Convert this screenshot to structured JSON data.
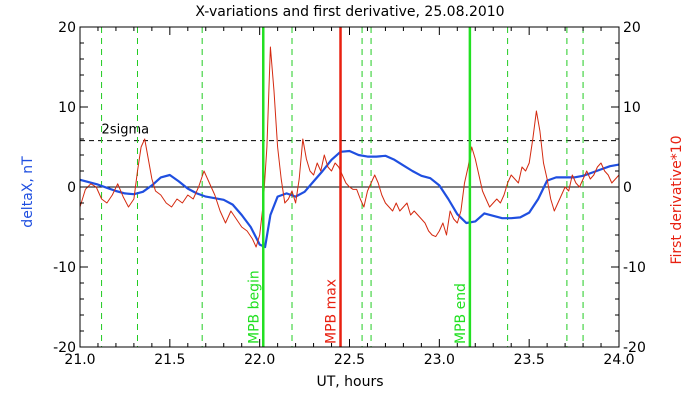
{
  "chart_data": {
    "type": "line",
    "title": "X-variations and first derivative, 25.08.2010",
    "xlabel": "UT, hours",
    "ylabel_left": "deltaX, nT",
    "ylabel_right": "First derivative*10",
    "xlim": [
      21.0,
      24.0
    ],
    "ylim_left": [
      -20,
      20
    ],
    "ylim_right": [
      -20,
      20
    ],
    "x_ticks": [
      "21.0",
      "21.5",
      "22.0",
      "22.5",
      "23.0",
      "23.5",
      "24.0"
    ],
    "y_ticks_left": [
      "-20",
      "-10",
      "0",
      "10",
      "20"
    ],
    "y_ticks_right": [
      "-20",
      "-10",
      "0",
      "10",
      "20"
    ],
    "colors": {
      "deltaX": "#1f4fe0",
      "derivative": "#d42a10",
      "mpb_lines": "#22e022",
      "mpb_max_line": "#e82010",
      "dashed_green": "#22cc22",
      "right_axis_label": "#e82010",
      "left_axis_label": "#1f4fe0"
    },
    "sigma": {
      "label": "2sigma",
      "value": 5.8
    },
    "dashed_green_x": [
      21.12,
      21.32,
      21.68,
      22.18,
      22.57,
      22.62,
      23.38,
      23.71,
      23.8
    ],
    "markers": [
      {
        "label": "MPB begin",
        "x": 22.02,
        "color": "#22e022"
      },
      {
        "label": "MPB max",
        "x": 22.45,
        "color": "#e82010"
      },
      {
        "label": "MPB end",
        "x": 23.17,
        "color": "#22e022"
      }
    ],
    "series": [
      {
        "name": "deltaX",
        "axis": "left",
        "color": "#1f4fe0",
        "points": [
          [
            21.0,
            0.9
          ],
          [
            21.05,
            0.6
          ],
          [
            21.1,
            0.3
          ],
          [
            21.15,
            -0.1
          ],
          [
            21.2,
            -0.5
          ],
          [
            21.25,
            -0.8
          ],
          [
            21.3,
            -0.9
          ],
          [
            21.35,
            -0.6
          ],
          [
            21.4,
            0.2
          ],
          [
            21.45,
            1.2
          ],
          [
            21.5,
            1.5
          ],
          [
            21.55,
            0.7
          ],
          [
            21.6,
            -0.2
          ],
          [
            21.65,
            -0.8
          ],
          [
            21.7,
            -1.2
          ],
          [
            21.75,
            -1.4
          ],
          [
            21.8,
            -1.6
          ],
          [
            21.85,
            -2.2
          ],
          [
            21.9,
            -3.5
          ],
          [
            21.95,
            -5.0
          ],
          [
            22.0,
            -7.2
          ],
          [
            22.03,
            -7.5
          ],
          [
            22.06,
            -3.5
          ],
          [
            22.1,
            -1.2
          ],
          [
            22.15,
            -0.8
          ],
          [
            22.2,
            -1.2
          ],
          [
            22.25,
            -0.6
          ],
          [
            22.3,
            0.7
          ],
          [
            22.35,
            2.0
          ],
          [
            22.4,
            3.4
          ],
          [
            22.45,
            4.4
          ],
          [
            22.5,
            4.5
          ],
          [
            22.55,
            4.0
          ],
          [
            22.6,
            3.8
          ],
          [
            22.65,
            3.8
          ],
          [
            22.7,
            3.9
          ],
          [
            22.75,
            3.4
          ],
          [
            22.8,
            2.7
          ],
          [
            22.85,
            2.0
          ],
          [
            22.9,
            1.4
          ],
          [
            22.95,
            1.1
          ],
          [
            23.0,
            0.2
          ],
          [
            23.05,
            -1.5
          ],
          [
            23.1,
            -3.4
          ],
          [
            23.15,
            -4.5
          ],
          [
            23.2,
            -4.3
          ],
          [
            23.25,
            -3.3
          ],
          [
            23.3,
            -3.6
          ],
          [
            23.35,
            -3.9
          ],
          [
            23.4,
            -3.9
          ],
          [
            23.45,
            -3.8
          ],
          [
            23.5,
            -3.2
          ],
          [
            23.55,
            -1.5
          ],
          [
            23.6,
            0.8
          ],
          [
            23.65,
            1.2
          ],
          [
            23.7,
            1.2
          ],
          [
            23.75,
            1.2
          ],
          [
            23.8,
            1.4
          ],
          [
            23.85,
            1.8
          ],
          [
            23.9,
            2.2
          ],
          [
            23.95,
            2.6
          ],
          [
            24.0,
            2.8
          ]
        ]
      },
      {
        "name": "First derivative*10",
        "axis": "right",
        "color": "#d42a10",
        "points": [
          [
            21.0,
            -2.5
          ],
          [
            21.03,
            -0.3
          ],
          [
            21.06,
            0.4
          ],
          [
            21.09,
            0.0
          ],
          [
            21.12,
            -1.5
          ],
          [
            21.15,
            -2.0
          ],
          [
            21.18,
            -1.0
          ],
          [
            21.21,
            0.4
          ],
          [
            21.24,
            -1.2
          ],
          [
            21.27,
            -2.5
          ],
          [
            21.3,
            -1.5
          ],
          [
            21.32,
            2.0
          ],
          [
            21.34,
            5.0
          ],
          [
            21.36,
            6.0
          ],
          [
            21.38,
            3.5
          ],
          [
            21.4,
            1.0
          ],
          [
            21.42,
            -0.5
          ],
          [
            21.45,
            -1.0
          ],
          [
            21.48,
            -2.0
          ],
          [
            21.51,
            -2.5
          ],
          [
            21.54,
            -1.5
          ],
          [
            21.57,
            -2.0
          ],
          [
            21.6,
            -1.0
          ],
          [
            21.63,
            -1.5
          ],
          [
            21.66,
            0.0
          ],
          [
            21.69,
            2.0
          ],
          [
            21.72,
            0.5
          ],
          [
            21.75,
            -1.0
          ],
          [
            21.78,
            -3.0
          ],
          [
            21.81,
            -4.5
          ],
          [
            21.84,
            -3.0
          ],
          [
            21.87,
            -4.0
          ],
          [
            21.9,
            -5.0
          ],
          [
            21.93,
            -5.5
          ],
          [
            21.96,
            -6.5
          ],
          [
            21.98,
            -7.5
          ],
          [
            22.0,
            -6.0
          ],
          [
            22.02,
            -2.0
          ],
          [
            22.04,
            5.0
          ],
          [
            22.06,
            17.5
          ],
          [
            22.08,
            12.0
          ],
          [
            22.1,
            5.0
          ],
          [
            22.12,
            1.0
          ],
          [
            22.14,
            -2.0
          ],
          [
            22.16,
            -1.5
          ],
          [
            22.18,
            -0.5
          ],
          [
            22.2,
            -2.0
          ],
          [
            22.22,
            1.0
          ],
          [
            22.24,
            6.0
          ],
          [
            22.26,
            3.5
          ],
          [
            22.28,
            2.0
          ],
          [
            22.3,
            1.5
          ],
          [
            22.32,
            3.0
          ],
          [
            22.34,
            2.0
          ],
          [
            22.36,
            4.0
          ],
          [
            22.38,
            2.5
          ],
          [
            22.4,
            2.0
          ],
          [
            22.42,
            3.0
          ],
          [
            22.44,
            2.5
          ],
          [
            22.46,
            1.5
          ],
          [
            22.48,
            0.5
          ],
          [
            22.5,
            0.0
          ],
          [
            22.52,
            -0.3
          ],
          [
            22.54,
            -0.3
          ],
          [
            22.56,
            -1.5
          ],
          [
            22.58,
            -2.5
          ],
          [
            22.6,
            -0.5
          ],
          [
            22.62,
            0.5
          ],
          [
            22.64,
            1.5
          ],
          [
            22.66,
            0.5
          ],
          [
            22.68,
            -1.0
          ],
          [
            22.7,
            -2.0
          ],
          [
            22.72,
            -2.5
          ],
          [
            22.74,
            -3.0
          ],
          [
            22.76,
            -2.0
          ],
          [
            22.78,
            -3.0
          ],
          [
            22.8,
            -2.5
          ],
          [
            22.82,
            -2.0
          ],
          [
            22.84,
            -3.5
          ],
          [
            22.86,
            -3.0
          ],
          [
            22.88,
            -3.5
          ],
          [
            22.9,
            -4.0
          ],
          [
            22.92,
            -4.5
          ],
          [
            22.94,
            -5.5
          ],
          [
            22.96,
            -6.0
          ],
          [
            22.98,
            -6.2
          ],
          [
            23.0,
            -5.5
          ],
          [
            23.02,
            -4.5
          ],
          [
            23.04,
            -6.0
          ],
          [
            23.06,
            -3.0
          ],
          [
            23.08,
            -4.0
          ],
          [
            23.1,
            -4.5
          ],
          [
            23.12,
            -3.0
          ],
          [
            23.14,
            0.5
          ],
          [
            23.16,
            2.5
          ],
          [
            23.18,
            5.0
          ],
          [
            23.2,
            3.5
          ],
          [
            23.22,
            1.5
          ],
          [
            23.24,
            -0.5
          ],
          [
            23.26,
            -1.5
          ],
          [
            23.28,
            -2.5
          ],
          [
            23.3,
            -2.0
          ],
          [
            23.32,
            -1.5
          ],
          [
            23.34,
            -2.0
          ],
          [
            23.36,
            -1.0
          ],
          [
            23.38,
            0.5
          ],
          [
            23.4,
            1.5
          ],
          [
            23.42,
            1.0
          ],
          [
            23.44,
            0.5
          ],
          [
            23.46,
            2.5
          ],
          [
            23.48,
            2.0
          ],
          [
            23.5,
            3.0
          ],
          [
            23.52,
            6.0
          ],
          [
            23.54,
            9.5
          ],
          [
            23.56,
            7.0
          ],
          [
            23.58,
            3.0
          ],
          [
            23.6,
            1.0
          ],
          [
            23.62,
            -1.5
          ],
          [
            23.64,
            -3.0
          ],
          [
            23.66,
            -2.0
          ],
          [
            23.68,
            -1.0
          ],
          [
            23.7,
            0.0
          ],
          [
            23.72,
            -0.5
          ],
          [
            23.74,
            1.5
          ],
          [
            23.76,
            0.5
          ],
          [
            23.78,
            0.0
          ],
          [
            23.8,
            1.0
          ],
          [
            23.82,
            2.0
          ],
          [
            23.84,
            1.0
          ],
          [
            23.86,
            1.5
          ],
          [
            23.88,
            2.5
          ],
          [
            23.9,
            3.0
          ],
          [
            23.92,
            2.0
          ],
          [
            23.94,
            1.5
          ],
          [
            23.96,
            0.5
          ],
          [
            23.98,
            1.0
          ],
          [
            24.0,
            1.5
          ]
        ]
      }
    ]
  }
}
